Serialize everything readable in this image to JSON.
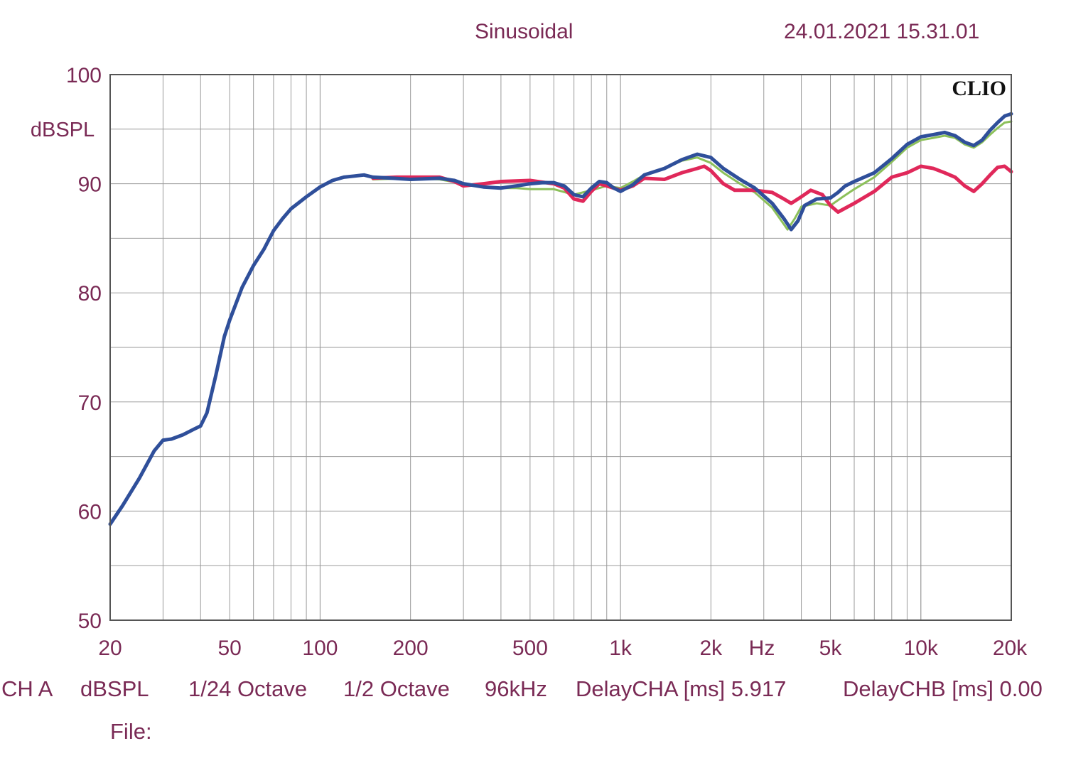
{
  "header": {
    "mode": "Sinusoidal",
    "timestamp": "24.01.2021 15.31.01"
  },
  "logo": "CLIO",
  "footer": {
    "channel": "CH A",
    "unit": "dBSPL",
    "resolution": "1/24 Octave",
    "smoothing": "1/2 Octave",
    "sample_rate": "96kHz",
    "delay_a": "DelayCHA [ms] 5.917",
    "delay_b": "DelayCHB [ms] 0.00",
    "file_label": "File:"
  },
  "colors": {
    "text": "#7a2a55",
    "grid": "#9a9a9a",
    "blue": "#2f4f9a",
    "green": "#8cc05a",
    "red": "#e0285a"
  },
  "chart_data": {
    "type": "line",
    "x_scale": "log",
    "xlim": [
      20,
      20000
    ],
    "ylim": [
      50,
      100
    ],
    "xlabel": "Hz",
    "ylabel": "dBSPL",
    "x_ticks": [
      {
        "value": 20,
        "label": "20"
      },
      {
        "value": 50,
        "label": "50"
      },
      {
        "value": 100,
        "label": "100"
      },
      {
        "value": 200,
        "label": "200"
      },
      {
        "value": 500,
        "label": "500"
      },
      {
        "value": 1000,
        "label": "1k"
      },
      {
        "value": 2000,
        "label": "2k"
      },
      {
        "value": 5000,
        "label": "5k"
      },
      {
        "value": 10000,
        "label": "10k"
      },
      {
        "value": 20000,
        "label": "20k"
      }
    ],
    "y_ticks": [
      {
        "value": 100,
        "label": "100"
      },
      {
        "value": 90,
        "label": "90"
      },
      {
        "value": 80,
        "label": "80"
      },
      {
        "value": 70,
        "label": "70"
      },
      {
        "value": 60,
        "label": "60"
      },
      {
        "value": 50,
        "label": "50"
      }
    ],
    "grid": true,
    "series": [
      {
        "color": "#8cc05a",
        "points": [
          [
            150,
            90.4
          ],
          [
            200,
            90.5
          ],
          [
            250,
            90.4
          ],
          [
            300,
            90.0
          ],
          [
            350,
            89.7
          ],
          [
            400,
            89.6
          ],
          [
            450,
            89.6
          ],
          [
            500,
            89.5
          ],
          [
            600,
            89.5
          ],
          [
            700,
            89.0
          ],
          [
            800,
            89.4
          ],
          [
            900,
            89.8
          ],
          [
            1000,
            89.6
          ],
          [
            1100,
            90.2
          ],
          [
            1200,
            90.8
          ],
          [
            1400,
            91.4
          ],
          [
            1600,
            92.1
          ],
          [
            1800,
            92.4
          ],
          [
            2000,
            91.9
          ],
          [
            2200,
            91.0
          ],
          [
            2500,
            90.0
          ],
          [
            2800,
            89.2
          ],
          [
            3200,
            87.8
          ],
          [
            3600,
            85.8
          ],
          [
            3800,
            86.8
          ],
          [
            4000,
            87.9
          ],
          [
            4500,
            88.2
          ],
          [
            5000,
            88.0
          ],
          [
            5500,
            88.8
          ],
          [
            6000,
            89.5
          ],
          [
            7000,
            90.6
          ],
          [
            8000,
            92.0
          ],
          [
            9000,
            93.3
          ],
          [
            10000,
            94.0
          ],
          [
            11000,
            94.2
          ],
          [
            12000,
            94.4
          ],
          [
            13000,
            94.2
          ],
          [
            14000,
            93.6
          ],
          [
            15000,
            93.3
          ],
          [
            16000,
            93.8
          ],
          [
            17000,
            94.5
          ],
          [
            18000,
            95.1
          ],
          [
            19000,
            95.6
          ],
          [
            20000,
            95.7
          ]
        ]
      },
      {
        "color": "#e0285a",
        "points": [
          [
            150,
            90.5
          ],
          [
            180,
            90.6
          ],
          [
            200,
            90.6
          ],
          [
            250,
            90.6
          ],
          [
            280,
            90.2
          ],
          [
            300,
            89.8
          ],
          [
            350,
            90.0
          ],
          [
            400,
            90.2
          ],
          [
            500,
            90.3
          ],
          [
            600,
            90.0
          ],
          [
            650,
            89.6
          ],
          [
            700,
            88.6
          ],
          [
            750,
            88.4
          ],
          [
            800,
            89.3
          ],
          [
            850,
            90.0
          ],
          [
            900,
            89.8
          ],
          [
            1000,
            89.4
          ],
          [
            1100,
            89.8
          ],
          [
            1200,
            90.5
          ],
          [
            1400,
            90.4
          ],
          [
            1600,
            91.0
          ],
          [
            1800,
            91.4
          ],
          [
            1900,
            91.6
          ],
          [
            2000,
            91.2
          ],
          [
            2200,
            90.0
          ],
          [
            2400,
            89.4
          ],
          [
            2800,
            89.4
          ],
          [
            3200,
            89.2
          ],
          [
            3500,
            88.6
          ],
          [
            3700,
            88.2
          ],
          [
            4000,
            88.8
          ],
          [
            4300,
            89.4
          ],
          [
            4700,
            89.0
          ],
          [
            5000,
            88.0
          ],
          [
            5300,
            87.4
          ],
          [
            6000,
            88.2
          ],
          [
            7000,
            89.3
          ],
          [
            8000,
            90.6
          ],
          [
            9000,
            91.0
          ],
          [
            10000,
            91.6
          ],
          [
            11000,
            91.4
          ],
          [
            12000,
            91.0
          ],
          [
            13000,
            90.6
          ],
          [
            14000,
            89.8
          ],
          [
            15000,
            89.3
          ],
          [
            16000,
            90.0
          ],
          [
            17000,
            90.8
          ],
          [
            18000,
            91.5
          ],
          [
            19000,
            91.6
          ],
          [
            20000,
            91.1
          ]
        ]
      },
      {
        "color": "#2f4f9a",
        "points": [
          [
            20,
            58.8
          ],
          [
            22,
            60.5
          ],
          [
            25,
            63.0
          ],
          [
            28,
            65.5
          ],
          [
            30,
            66.5
          ],
          [
            32,
            66.6
          ],
          [
            35,
            67.0
          ],
          [
            38,
            67.5
          ],
          [
            40,
            67.8
          ],
          [
            42,
            69.0
          ],
          [
            45,
            72.5
          ],
          [
            48,
            76.0
          ],
          [
            50,
            77.5
          ],
          [
            55,
            80.5
          ],
          [
            60,
            82.5
          ],
          [
            65,
            84.0
          ],
          [
            70,
            85.7
          ],
          [
            75,
            86.8
          ],
          [
            80,
            87.7
          ],
          [
            90,
            88.8
          ],
          [
            100,
            89.7
          ],
          [
            110,
            90.3
          ],
          [
            120,
            90.6
          ],
          [
            130,
            90.7
          ],
          [
            140,
            90.8
          ],
          [
            150,
            90.6
          ],
          [
            175,
            90.5
          ],
          [
            200,
            90.4
          ],
          [
            250,
            90.5
          ],
          [
            280,
            90.3
          ],
          [
            300,
            90.0
          ],
          [
            350,
            89.7
          ],
          [
            400,
            89.6
          ],
          [
            450,
            89.8
          ],
          [
            500,
            90.0
          ],
          [
            550,
            90.1
          ],
          [
            600,
            90.1
          ],
          [
            650,
            89.8
          ],
          [
            700,
            89.0
          ],
          [
            750,
            88.8
          ],
          [
            800,
            89.6
          ],
          [
            850,
            90.2
          ],
          [
            900,
            90.1
          ],
          [
            950,
            89.6
          ],
          [
            1000,
            89.3
          ],
          [
            1100,
            89.9
          ],
          [
            1200,
            90.8
          ],
          [
            1400,
            91.4
          ],
          [
            1600,
            92.2
          ],
          [
            1800,
            92.7
          ],
          [
            2000,
            92.4
          ],
          [
            2200,
            91.4
          ],
          [
            2500,
            90.4
          ],
          [
            2800,
            89.6
          ],
          [
            3200,
            88.2
          ],
          [
            3500,
            86.8
          ],
          [
            3700,
            85.8
          ],
          [
            3900,
            86.6
          ],
          [
            4100,
            88.0
          ],
          [
            4500,
            88.6
          ],
          [
            5000,
            88.7
          ],
          [
            5300,
            89.2
          ],
          [
            5600,
            89.8
          ],
          [
            6000,
            90.2
          ],
          [
            7000,
            91.0
          ],
          [
            8000,
            92.3
          ],
          [
            9000,
            93.6
          ],
          [
            10000,
            94.3
          ],
          [
            11000,
            94.5
          ],
          [
            12000,
            94.7
          ],
          [
            13000,
            94.4
          ],
          [
            14000,
            93.8
          ],
          [
            15000,
            93.5
          ],
          [
            16000,
            94.0
          ],
          [
            17000,
            94.9
          ],
          [
            18000,
            95.6
          ],
          [
            19000,
            96.2
          ],
          [
            20000,
            96.4
          ]
        ]
      }
    ]
  }
}
